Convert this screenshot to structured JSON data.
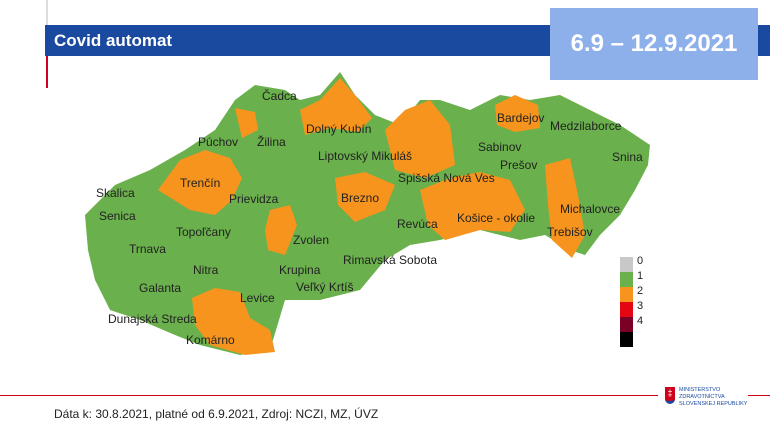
{
  "header": {
    "title": "Covid automat",
    "date_range": "6.9 – 12.9.2021"
  },
  "map": {
    "colors": {
      "0": "#c8c8c8",
      "1": "#6ab04c",
      "2": "#f7941d",
      "3": "#e30613",
      "4": "#7a0026",
      "5": "#000000"
    },
    "districts": [
      "Čadca",
      "Púchov",
      "Žilina",
      "Dolný Kubín",
      "Bardejov",
      "Medzilaborce",
      "Liptovský Mikuláš",
      "Sabinov",
      "Snina",
      "Prešov",
      "Skalica",
      "Trenčín",
      "Spišská Nová Ves",
      "Prievidza",
      "Brezno",
      "Senica",
      "Košice - okolie",
      "Michalovce",
      "Topoľčany",
      "Revúca",
      "Zvolen",
      "Trnava",
      "Trebišov",
      "Rimavská Sobota",
      "Nitra",
      "Krupina",
      "Galanta",
      "Levice",
      "Veľký Krtíš",
      "Dunajská Streda",
      "Komárno"
    ]
  },
  "legend": {
    "items": [
      {
        "label": "0",
        "color": "#c8c8c8"
      },
      {
        "label": "1",
        "color": "#6ab04c"
      },
      {
        "label": "2",
        "color": "#f7941d"
      },
      {
        "label": "3",
        "color": "#e30613"
      },
      {
        "label": "4",
        "color": "#7a0026"
      },
      {
        "label": "",
        "color": "#000000"
      }
    ]
  },
  "footer": {
    "source": "Dáta k: 30.8.2021, platné od 6.9.2021, Zdroj: NCZI, MZ, ÚVZ",
    "logo_lines": [
      "MINISTERSTVO",
      "ZDRAVOTNÍCTVA",
      "SLOVENSKEJ REPUBLIKY"
    ]
  }
}
